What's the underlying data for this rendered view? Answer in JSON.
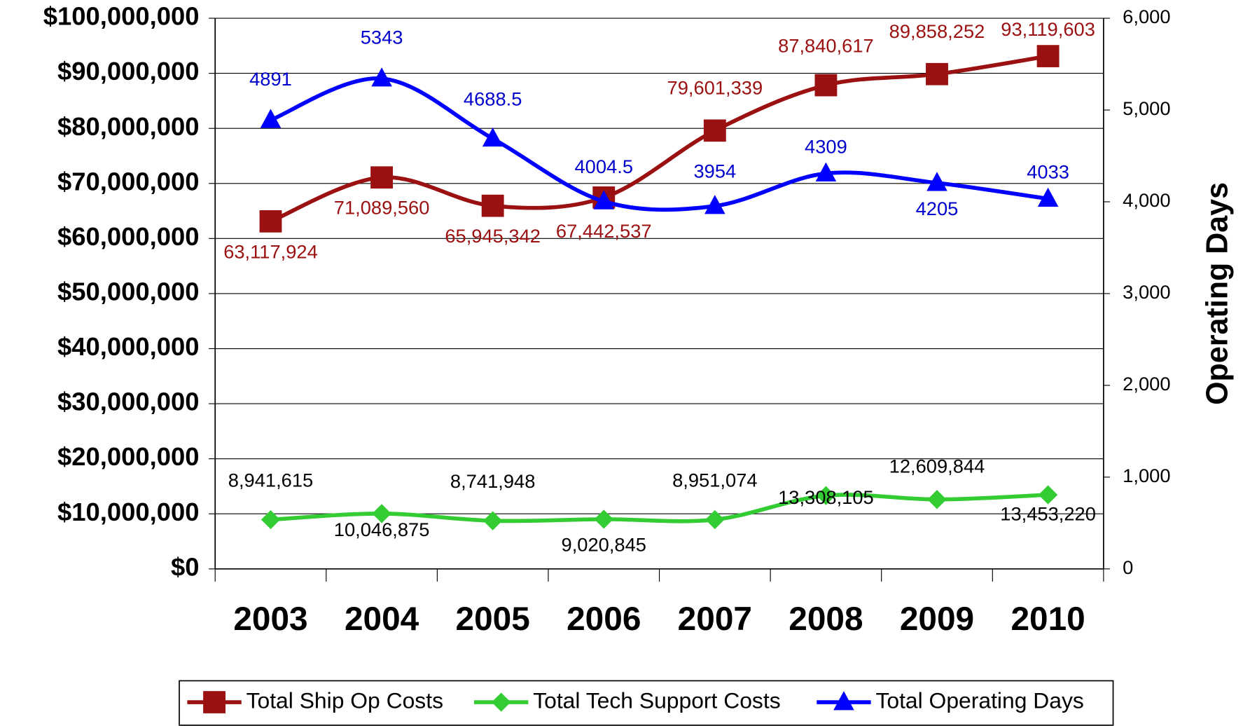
{
  "chart_data": {
    "type": "line",
    "y2label": "Operating Days",
    "categories": [
      "2003",
      "2004",
      "2005",
      "2006",
      "2007",
      "2008",
      "2009",
      "2010"
    ],
    "series": [
      {
        "name": "Total Ship Op Costs",
        "color": "#9b1010",
        "marker": "square",
        "values": [
          63117924,
          71089560,
          65945342,
          67442537,
          79601339,
          87840617,
          89858252,
          93119603
        ],
        "value_labels": [
          "63,117,924",
          "71,089,560",
          "65,945,342",
          "67,442,537",
          "79,601,339",
          "87,840,617",
          "89,858,252",
          "93,119,603"
        ]
      },
      {
        "name": "Total Tech Support Costs",
        "color": "#33cc33",
        "marker": "diamond",
        "values": [
          8941615,
          10046875,
          8741948,
          9020845,
          8951074,
          13308105,
          12609844,
          13453220
        ],
        "value_labels": [
          "8,941,615",
          "10,046,875",
          "8,741,948",
          "9,020,845",
          "8,951,074",
          "13,308,105",
          "12,609,844",
          "13,453,220"
        ]
      },
      {
        "name": "Total Operating Days",
        "color": "#0000ff",
        "marker": "triangle",
        "axis": "y2",
        "values": [
          4891,
          5343,
          4688.5,
          4004.5,
          3954,
          4309,
          4205,
          4033
        ]
      }
    ],
    "ylim": [
      0,
      100000000
    ],
    "yticks": [
      {
        "value": 0,
        "label": "$0"
      },
      {
        "value": 10000000,
        "label": "$10,000,000"
      },
      {
        "value": 20000000,
        "label": "$20,000,000"
      },
      {
        "value": 30000000,
        "label": "$30,000,000"
      },
      {
        "value": 40000000,
        "label": "$40,000,000"
      },
      {
        "value": 50000000,
        "label": "$50,000,000"
      },
      {
        "value": 60000000,
        "label": "$60,000,000"
      },
      {
        "value": 70000000,
        "label": "$70,000,000"
      },
      {
        "value": 80000000,
        "label": "$80,000,000"
      },
      {
        "value": 90000000,
        "label": "$90,000,000"
      },
      {
        "value": 100000000,
        "label": "$100,000,000"
      }
    ],
    "y2lim": [
      0,
      6000
    ],
    "y2ticks": [
      0,
      {
        "value": 1000,
        "label": "1,000"
      },
      {
        "value": 2000,
        "label": "2,000"
      },
      {
        "value": 3000,
        "label": "3,000"
      },
      {
        "value": 4000,
        "label": "4,000"
      },
      {
        "value": 5000,
        "label": "5,000"
      },
      {
        "value": 6000,
        "label": "6,000"
      }
    ],
    "grid": true,
    "legend": "bottom"
  }
}
